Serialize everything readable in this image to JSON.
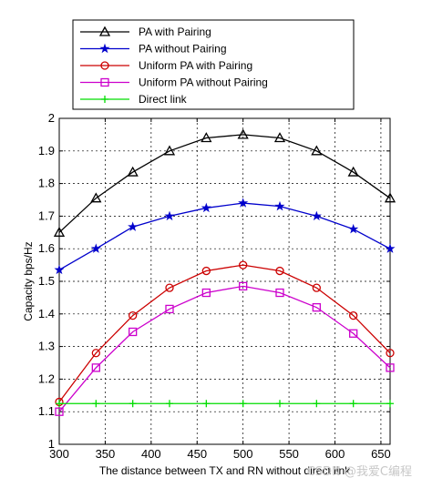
{
  "chart_data": {
    "type": "line",
    "xlabel": "The distance between TX and RN without direct link",
    "ylabel": "Capacity bps/Hz",
    "xlim": [
      300,
      660
    ],
    "ylim": [
      1,
      2
    ],
    "x_ticks": [
      300,
      350,
      400,
      450,
      500,
      550,
      600,
      650
    ],
    "y_ticks": [
      1,
      1.1,
      1.2,
      1.3,
      1.4,
      1.5,
      1.6,
      1.7,
      1.8,
      1.9,
      2
    ],
    "grid": true,
    "legend_position": "top",
    "x": [
      300,
      340,
      380,
      420,
      460,
      500,
      540,
      580,
      620,
      660
    ],
    "series": [
      {
        "name": "PA with Pairing",
        "color": "#000000",
        "marker": "triangle",
        "values": [
          1.65,
          1.755,
          1.835,
          1.9,
          1.94,
          1.95,
          1.94,
          1.9,
          1.835,
          1.755
        ]
      },
      {
        "name": "PA without Pairing",
        "color": "#0000cc",
        "marker": "star",
        "values": [
          1.535,
          1.6,
          1.667,
          1.7,
          1.725,
          1.74,
          1.73,
          1.7,
          1.66,
          1.6
        ]
      },
      {
        "name": "Uniform PA with Pairing",
        "color": "#cc0000",
        "marker": "circle",
        "values": [
          1.13,
          1.28,
          1.395,
          1.48,
          1.532,
          1.55,
          1.532,
          1.48,
          1.395,
          1.28
        ]
      },
      {
        "name": "Uniform PA without Pairing",
        "color": "#cc00cc",
        "marker": "square",
        "values": [
          1.1,
          1.235,
          1.345,
          1.415,
          1.465,
          1.485,
          1.465,
          1.42,
          1.34,
          1.235
        ]
      },
      {
        "name": "Direct link",
        "color": "#00dd00",
        "marker": "plus",
        "values": [
          1.125,
          1.125,
          1.125,
          1.125,
          1.125,
          1.125,
          1.125,
          1.125,
          1.125,
          1.125
        ]
      }
    ]
  },
  "watermark": "CSDN @我爱C编程"
}
